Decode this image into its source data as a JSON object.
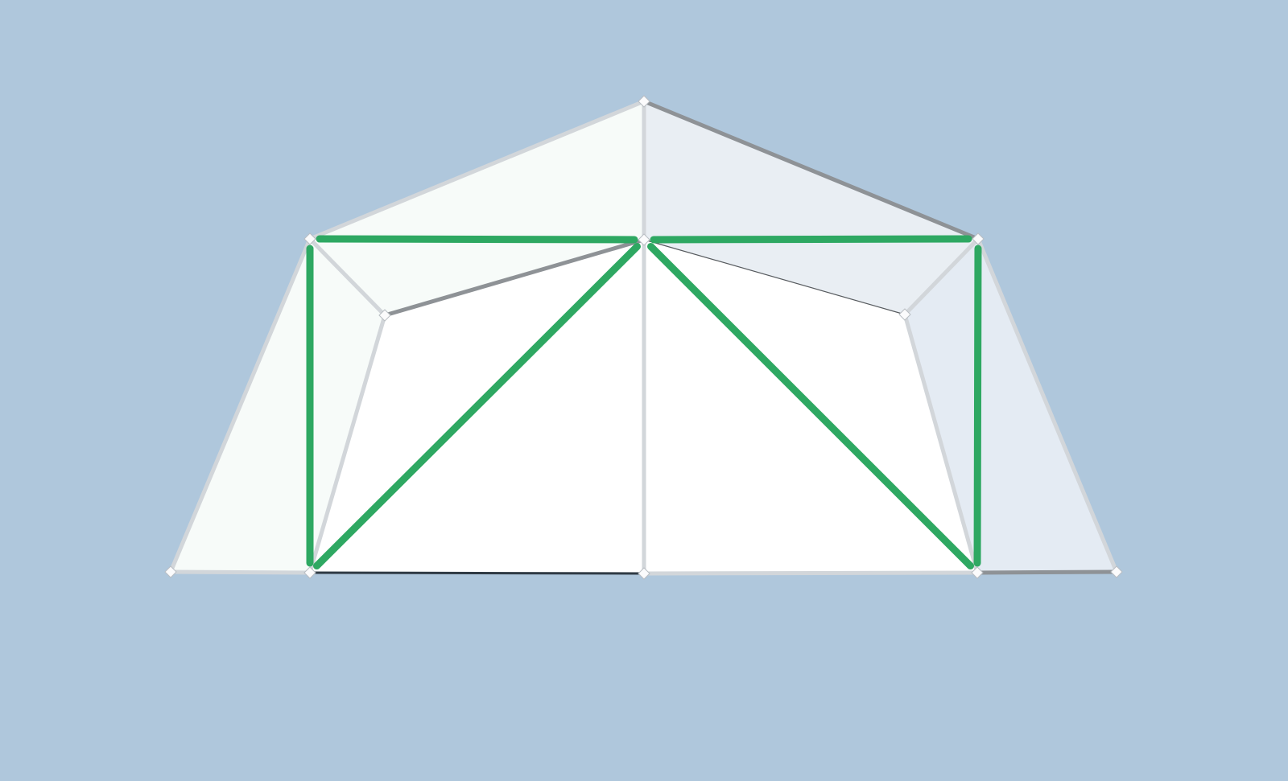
{
  "scene": {
    "background_color": "#afc7dc",
    "highlight_color": "#2ea862",
    "edge_color": "#d2d6da",
    "shadow_edge_color": "#8e9296",
    "face_colors": {
      "lit": "#f7fbf9",
      "shaded": "#e9eef3",
      "cool": "#e4ebf3",
      "front": "#ffffff"
    }
  },
  "model": {
    "vertices": [
      {
        "id": "apex"
      },
      {
        "id": "roof-left"
      },
      {
        "id": "roof-center"
      },
      {
        "id": "roof-right"
      },
      {
        "id": "inner-left"
      },
      {
        "id": "inner-right"
      },
      {
        "id": "base-far-left"
      },
      {
        "id": "base-left"
      },
      {
        "id": "base-center"
      },
      {
        "id": "base-right"
      },
      {
        "id": "base-far-right"
      }
    ],
    "faces": [
      {
        "id": "roof-left-face",
        "verts": [
          "apex",
          "roof-left",
          "roof-center"
        ],
        "shade": "lit"
      },
      {
        "id": "roof-right-face",
        "verts": [
          "apex",
          "roof-center",
          "roof-right"
        ],
        "shade": "shaded"
      },
      {
        "id": "upper-left-face",
        "verts": [
          "roof-left",
          "roof-center",
          "inner-left"
        ],
        "shade": "lit"
      },
      {
        "id": "upper-right-face",
        "verts": [
          "roof-center",
          "roof-right",
          "inner-right"
        ],
        "shade": "shaded"
      },
      {
        "id": "side-left-face",
        "verts": [
          "roof-left",
          "base-far-left",
          "base-left"
        ],
        "shade": "lit"
      },
      {
        "id": "side-right-face",
        "verts": [
          "roof-right",
          "base-right",
          "base-far-right"
        ],
        "shade": "cool"
      },
      {
        "id": "wall-left-face",
        "verts": [
          "roof-left",
          "inner-left",
          "base-left"
        ],
        "shade": "lit"
      },
      {
        "id": "wall-right-face",
        "verts": [
          "roof-right",
          "inner-right",
          "base-right"
        ],
        "shade": "cool"
      },
      {
        "id": "front-left-face",
        "verts": [
          "roof-center",
          "inner-left",
          "base-left",
          "base-center"
        ],
        "shade": "front"
      },
      {
        "id": "front-right-face",
        "verts": [
          "roof-center",
          "base-center",
          "base-right",
          "inner-right"
        ],
        "shade": "front"
      }
    ],
    "edges": [
      {
        "id": "edge-apex-roof-left",
        "from": "apex",
        "to": "roof-left",
        "kind": "plain"
      },
      {
        "id": "edge-apex-roof-right",
        "from": "apex",
        "to": "roof-right",
        "kind": "shadow"
      },
      {
        "id": "edge-apex-roof-center",
        "from": "apex",
        "to": "roof-center",
        "kind": "plain"
      },
      {
        "id": "edge-roof-left-inner-left",
        "from": "roof-left",
        "to": "inner-left",
        "kind": "plain"
      },
      {
        "id": "edge-inner-left-roof-center",
        "from": "inner-left",
        "to": "roof-center",
        "kind": "shadow"
      },
      {
        "id": "edge-roof-center-inner-right",
        "from": "roof-center",
        "to": "inner-right",
        "kind": "thin"
      },
      {
        "id": "edge-inner-right-roof-right",
        "from": "inner-right",
        "to": "roof-right",
        "kind": "plain"
      },
      {
        "id": "edge-roof-left-base-far-left",
        "from": "roof-left",
        "to": "base-far-left",
        "kind": "plain"
      },
      {
        "id": "edge-roof-right-base-far-right",
        "from": "roof-right",
        "to": "base-far-right",
        "kind": "plain"
      },
      {
        "id": "edge-inner-left-base-left",
        "from": "inner-left",
        "to": "base-left",
        "kind": "plain"
      },
      {
        "id": "edge-inner-right-base-right",
        "from": "inner-right",
        "to": "base-right",
        "kind": "plain"
      },
      {
        "id": "edge-roof-center-base-center",
        "from": "roof-center",
        "to": "base-center",
        "kind": "plain"
      },
      {
        "id": "edge-base-far-left-base-left",
        "from": "base-far-left",
        "to": "base-left",
        "kind": "plain"
      },
      {
        "id": "edge-base-left-base-center",
        "from": "base-left",
        "to": "base-center",
        "kind": "dark"
      },
      {
        "id": "edge-base-center-base-right",
        "from": "base-center",
        "to": "base-right",
        "kind": "plain"
      },
      {
        "id": "edge-base-right-base-far-right",
        "from": "base-right",
        "to": "base-far-right",
        "kind": "shadow"
      },
      {
        "id": "edge-roof-left-roof-center",
        "from": "roof-left",
        "to": "roof-center",
        "kind": "highlight"
      },
      {
        "id": "edge-roof-center-roof-right",
        "from": "roof-center",
        "to": "roof-right",
        "kind": "highlight"
      },
      {
        "id": "edge-roof-left-base-left",
        "from": "roof-left",
        "to": "base-left",
        "kind": "highlight"
      },
      {
        "id": "edge-roof-right-base-right",
        "from": "roof-right",
        "to": "base-right",
        "kind": "highlight"
      },
      {
        "id": "edge-roof-center-base-left",
        "from": "roof-center",
        "to": "base-left",
        "kind": "highlight"
      },
      {
        "id": "edge-roof-center-base-right",
        "from": "roof-center",
        "to": "base-right",
        "kind": "highlight"
      }
    ]
  }
}
